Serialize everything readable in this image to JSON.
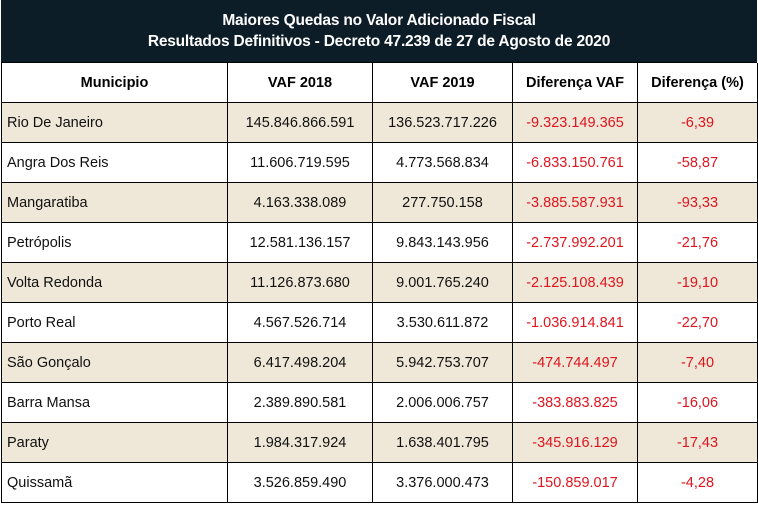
{
  "title": {
    "line1": "Maiores Quedas no Valor Adicionado Fiscal",
    "line2": "Resultados Definitivos - Decreto 47.239 de 27 de Agosto de 2020"
  },
  "columns": [
    "Municipio",
    "VAF 2018",
    "VAF 2019",
    "Diferença VAF",
    "Diferença (%)"
  ],
  "rows": [
    {
      "municipio": "Rio De Janeiro",
      "vaf2018": "145.846.866.591",
      "vaf2019": "136.523.717.226",
      "diff": "-9.323.149.365",
      "pct": "-6,39"
    },
    {
      "municipio": "Angra Dos Reis",
      "vaf2018": "11.606.719.595",
      "vaf2019": "4.773.568.834",
      "diff": "-6.833.150.761",
      "pct": "-58,87"
    },
    {
      "municipio": "Mangaratiba",
      "vaf2018": "4.163.338.089",
      "vaf2019": "277.750.158",
      "diff": "-3.885.587.931",
      "pct": "-93,33"
    },
    {
      "municipio": "Petrópolis",
      "vaf2018": "12.581.136.157",
      "vaf2019": "9.843.143.956",
      "diff": "-2.737.992.201",
      "pct": "-21,76"
    },
    {
      "municipio": "Volta Redonda",
      "vaf2018": "11.126.873.680",
      "vaf2019": "9.001.765.240",
      "diff": "-2.125.108.439",
      "pct": "-19,10"
    },
    {
      "municipio": "Porto Real",
      "vaf2018": "4.567.526.714",
      "vaf2019": "3.530.611.872",
      "diff": "-1.036.914.841",
      "pct": "-22,70"
    },
    {
      "municipio": "São Gonçalo",
      "vaf2018": "6.417.498.204",
      "vaf2019": "5.942.753.707",
      "diff": "-474.744.497",
      "pct": "-7,40"
    },
    {
      "municipio": "Barra Mansa",
      "vaf2018": "2.389.890.581",
      "vaf2019": "2.006.006.757",
      "diff": "-383.883.825",
      "pct": "-16,06"
    },
    {
      "municipio": "Paraty",
      "vaf2018": "1.984.317.924",
      "vaf2019": "1.638.401.795",
      "diff": "-345.916.129",
      "pct": "-17,43"
    },
    {
      "municipio": "Quissamã",
      "vaf2018": "3.526.859.490",
      "vaf2019": "3.376.000.473",
      "diff": "-150.859.017",
      "pct": "-4,28"
    }
  ],
  "colors": {
    "title_bg": "#0d1d27",
    "shaded_row": "#efe8d8",
    "negative_text": "#e0141e"
  }
}
